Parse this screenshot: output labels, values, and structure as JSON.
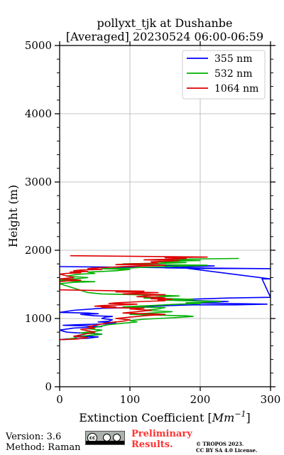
{
  "chart_data": {
    "type": "line",
    "title_line1": "pollyxt_tjk at Dushanbe",
    "title_line2": "[Averaged] 20230524 06:00-06:59",
    "xlabel_prefix": "Extinction Coefficient [",
    "xlabel_unit_base": "Mm",
    "xlabel_unit_exp": "−1",
    "xlabel_suffix": "]",
    "ylabel": "Height (m)",
    "xlim": [
      0,
      300
    ],
    "ylim": [
      0,
      5000
    ],
    "xticks": [
      0,
      100,
      200,
      300
    ],
    "yticks": [
      0,
      1000,
      2000,
      3000,
      4000,
      5000
    ],
    "grid": true,
    "legend_position": "top-right",
    "series": [
      {
        "name": "355 nm",
        "color": "#0000ff",
        "points": [
          [
            0,
            1760
          ],
          [
            300,
            1730
          ],
          [
            150,
            1740
          ],
          [
            190,
            1760
          ],
          [
            220,
            1770
          ],
          [
            160,
            1780
          ],
          [
            140,
            1790
          ],
          [
            300,
            1580
          ],
          [
            288,
            1580
          ],
          [
            300,
            1310
          ],
          [
            240,
            1300
          ],
          [
            180,
            1280
          ],
          [
            170,
            1270
          ],
          [
            200,
            1260
          ],
          [
            240,
            1250
          ],
          [
            220,
            1240
          ],
          [
            180,
            1230
          ],
          [
            295,
            1210
          ],
          [
            250,
            1200
          ],
          [
            190,
            1200
          ],
          [
            130,
            1180
          ],
          [
            110,
            1160
          ],
          [
            60,
            1150
          ],
          [
            20,
            1120
          ],
          [
            0,
            1090
          ],
          [
            40,
            1080
          ],
          [
            55,
            1070
          ],
          [
            30,
            1060
          ],
          [
            50,
            1040
          ],
          [
            75,
            1030
          ],
          [
            65,
            1020
          ],
          [
            60,
            1000
          ],
          [
            75,
            980
          ],
          [
            70,
            960
          ],
          [
            55,
            950
          ],
          [
            80,
            940
          ],
          [
            65,
            920
          ],
          [
            30,
            910
          ],
          [
            5,
            900
          ],
          [
            45,
            890
          ],
          [
            60,
            880
          ],
          [
            20,
            860
          ],
          [
            0,
            830
          ],
          [
            10,
            800
          ],
          [
            25,
            790
          ],
          [
            50,
            780
          ],
          [
            60,
            770
          ],
          [
            45,
            750
          ],
          [
            20,
            740
          ],
          [
            55,
            730
          ],
          [
            40,
            710
          ],
          [
            10,
            700
          ],
          [
            0,
            690
          ]
        ]
      },
      {
        "name": "532 nm",
        "color": "#00b000",
        "points": [
          [
            255,
            1880
          ],
          [
            180,
            1870
          ],
          [
            130,
            1860
          ],
          [
            200,
            1850
          ],
          [
            160,
            1840
          ],
          [
            140,
            1830
          ],
          [
            180,
            1820
          ],
          [
            150,
            1810
          ],
          [
            90,
            1800
          ],
          [
            120,
            1790
          ],
          [
            210,
            1780
          ],
          [
            180,
            1770
          ],
          [
            120,
            1750
          ],
          [
            100,
            1740
          ],
          [
            60,
            1730
          ],
          [
            100,
            1720
          ],
          [
            80,
            1700
          ],
          [
            60,
            1690
          ],
          [
            40,
            1680
          ],
          [
            50,
            1660
          ],
          [
            30,
            1650
          ],
          [
            20,
            1640
          ],
          [
            10,
            1620
          ],
          [
            40,
            1600
          ],
          [
            20,
            1580
          ],
          [
            0,
            1560
          ],
          [
            15,
            1550
          ],
          [
            50,
            1540
          ],
          [
            20,
            1530
          ],
          [
            0,
            1510
          ],
          [
            40,
            1380
          ],
          [
            60,
            1360
          ],
          [
            150,
            1340
          ],
          [
            170,
            1330
          ],
          [
            140,
            1320
          ],
          [
            120,
            1300
          ],
          [
            160,
            1290
          ],
          [
            190,
            1280
          ],
          [
            150,
            1270
          ],
          [
            180,
            1260
          ],
          [
            230,
            1250
          ],
          [
            210,
            1240
          ],
          [
            180,
            1230
          ],
          [
            200,
            1220
          ],
          [
            170,
            1210
          ],
          [
            150,
            1200
          ],
          [
            130,
            1190
          ],
          [
            110,
            1180
          ],
          [
            90,
            1170
          ],
          [
            150,
            1160
          ],
          [
            140,
            1140
          ],
          [
            120,
            1120
          ],
          [
            160,
            1100
          ],
          [
            130,
            1080
          ],
          [
            100,
            1060
          ],
          [
            180,
            1040
          ],
          [
            190,
            1030
          ],
          [
            160,
            1010
          ],
          [
            120,
            990
          ],
          [
            100,
            970
          ],
          [
            110,
            950
          ],
          [
            90,
            930
          ],
          [
            70,
            910
          ],
          [
            60,
            890
          ],
          [
            50,
            870
          ],
          [
            40,
            850
          ],
          [
            60,
            830
          ],
          [
            50,
            810
          ],
          [
            30,
            790
          ],
          [
            60,
            770
          ],
          [
            40,
            750
          ],
          [
            25,
            730
          ],
          [
            20,
            710
          ],
          [
            5,
            690
          ]
        ]
      },
      {
        "name": "1064 nm",
        "color": "#dd0000",
        "points": [
          [
            15,
            1920
          ],
          [
            210,
            1900
          ],
          [
            150,
            1890
          ],
          [
            180,
            1880
          ],
          [
            160,
            1870
          ],
          [
            120,
            1860
          ],
          [
            170,
            1850
          ],
          [
            150,
            1840
          ],
          [
            130,
            1830
          ],
          [
            140,
            1810
          ],
          [
            100,
            1800
          ],
          [
            80,
            1790
          ],
          [
            150,
            1780
          ],
          [
            120,
            1770
          ],
          [
            90,
            1760
          ],
          [
            70,
            1750
          ],
          [
            50,
            1740
          ],
          [
            40,
            1730
          ],
          [
            60,
            1720
          ],
          [
            30,
            1710
          ],
          [
            20,
            1700
          ],
          [
            40,
            1690
          ],
          [
            15,
            1680
          ],
          [
            30,
            1670
          ],
          [
            10,
            1660
          ],
          [
            0,
            1650
          ],
          [
            20,
            1600
          ],
          [
            10,
            1590
          ],
          [
            0,
            1580
          ],
          [
            30,
            1560
          ],
          [
            10,
            1550
          ],
          [
            0,
            1540
          ],
          [
            0,
            1420
          ],
          [
            120,
            1400
          ],
          [
            80,
            1390
          ],
          [
            140,
            1380
          ],
          [
            110,
            1370
          ],
          [
            90,
            1360
          ],
          [
            150,
            1350
          ],
          [
            130,
            1340
          ],
          [
            110,
            1320
          ],
          [
            140,
            1310
          ],
          [
            150,
            1300
          ],
          [
            130,
            1290
          ],
          [
            160,
            1280
          ],
          [
            140,
            1270
          ],
          [
            150,
            1260
          ],
          [
            120,
            1250
          ],
          [
            100,
            1240
          ],
          [
            80,
            1230
          ],
          [
            70,
            1220
          ],
          [
            110,
            1210
          ],
          [
            90,
            1200
          ],
          [
            60,
            1190
          ],
          [
            50,
            1180
          ],
          [
            80,
            1170
          ],
          [
            60,
            1160
          ],
          [
            120,
            1150
          ],
          [
            100,
            1140
          ],
          [
            130,
            1120
          ],
          [
            110,
            1100
          ],
          [
            90,
            1080
          ],
          [
            150,
            1060
          ],
          [
            120,
            1040
          ],
          [
            100,
            1020
          ],
          [
            80,
            1000
          ],
          [
            100,
            980
          ],
          [
            90,
            960
          ],
          [
            70,
            940
          ],
          [
            60,
            920
          ],
          [
            50,
            900
          ],
          [
            40,
            880
          ],
          [
            50,
            860
          ],
          [
            30,
            840
          ],
          [
            40,
            820
          ],
          [
            50,
            800
          ],
          [
            40,
            780
          ],
          [
            30,
            760
          ],
          [
            20,
            740
          ],
          [
            40,
            720
          ],
          [
            25,
            700
          ],
          [
            0,
            690
          ]
        ]
      }
    ]
  },
  "footer": {
    "version": "Version: 3.6",
    "method": "Method: Raman",
    "cc_symbol": "cc",
    "preliminary_line1": "Preliminary",
    "preliminary_line2": "Results.",
    "copyright_line1": "© TROPOS 2023.",
    "copyright_line2": "CC BY SA 4.0 License."
  }
}
